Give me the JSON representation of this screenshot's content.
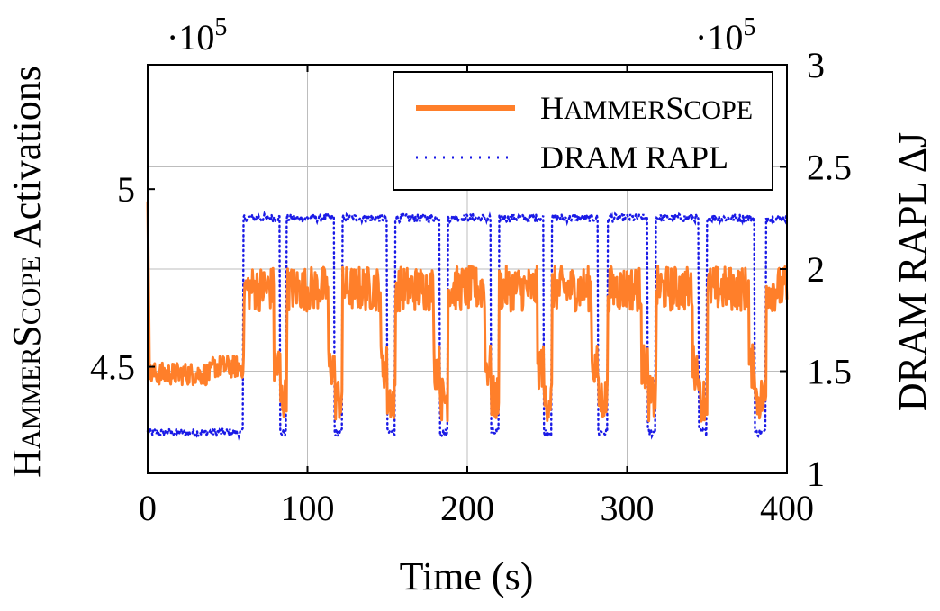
{
  "chart_data": {
    "type": "line",
    "xlabel": "Time (s)",
    "ylabel_left": "HammerScope Activations",
    "ylabel_right": "DRAM RAPL ΔJ",
    "xlim": [
      0,
      400
    ],
    "ylim_left": [
      4.2,
      5.35
    ],
    "ylim_right": [
      1.0,
      3.0
    ],
    "x_ticks": [
      0,
      100,
      200,
      300,
      400
    ],
    "x_tick_labels": [
      "0",
      "100",
      "200",
      "300",
      "400"
    ],
    "y_left_ticks": [
      4.5,
      5.0
    ],
    "y_left_tick_labels": [
      "4.5",
      "5"
    ],
    "y_right_ticks": [
      1.0,
      1.5,
      2.0,
      2.5,
      3.0
    ],
    "y_right_tick_labels": [
      "1",
      "1.5",
      "2",
      "2.5",
      "3"
    ],
    "left_exponent": {
      "base": "·10",
      "power": "5"
    },
    "right_exponent": {
      "base": "·10",
      "power": "5"
    },
    "grid": true,
    "legend_position": "top-right",
    "phases": [
      {
        "start": 0,
        "end": 60,
        "state": "idle"
      },
      {
        "start": 60,
        "end": 83,
        "state": "active"
      },
      {
        "start": 83,
        "end": 87,
        "state": "idle"
      },
      {
        "start": 87,
        "end": 117,
        "state": "active"
      },
      {
        "start": 117,
        "end": 122,
        "state": "idle"
      },
      {
        "start": 122,
        "end": 150,
        "state": "active"
      },
      {
        "start": 150,
        "end": 155,
        "state": "idle"
      },
      {
        "start": 155,
        "end": 183,
        "state": "active"
      },
      {
        "start": 183,
        "end": 188,
        "state": "idle"
      },
      {
        "start": 188,
        "end": 215,
        "state": "active"
      },
      {
        "start": 215,
        "end": 220,
        "state": "idle"
      },
      {
        "start": 220,
        "end": 248,
        "state": "active"
      },
      {
        "start": 248,
        "end": 253,
        "state": "idle"
      },
      {
        "start": 253,
        "end": 282,
        "state": "active"
      },
      {
        "start": 282,
        "end": 288,
        "state": "idle"
      },
      {
        "start": 288,
        "end": 313,
        "state": "active"
      },
      {
        "start": 313,
        "end": 318,
        "state": "idle"
      },
      {
        "start": 318,
        "end": 345,
        "state": "active"
      },
      {
        "start": 345,
        "end": 350,
        "state": "idle"
      },
      {
        "start": 350,
        "end": 380,
        "state": "active"
      },
      {
        "start": 380,
        "end": 387,
        "state": "idle"
      },
      {
        "start": 387,
        "end": 400,
        "state": "active"
      }
    ],
    "series": [
      {
        "name": "HammerScope",
        "axis": "left",
        "style": "solid",
        "color": "#FF7F2A",
        "legend_parts": [
          "H",
          "AMMER",
          "S",
          "COPE"
        ],
        "initial_spike": 4.98,
        "idle_level": 4.48,
        "active_level": 4.72,
        "dip_level": 4.35,
        "noise": 0.04
      },
      {
        "name": "DRAM RAPL",
        "axis": "right",
        "style": "dotted",
        "color": "#1A1AE6",
        "idle_level": 1.2,
        "active_level": 2.25,
        "noise": 0.02
      }
    ]
  }
}
